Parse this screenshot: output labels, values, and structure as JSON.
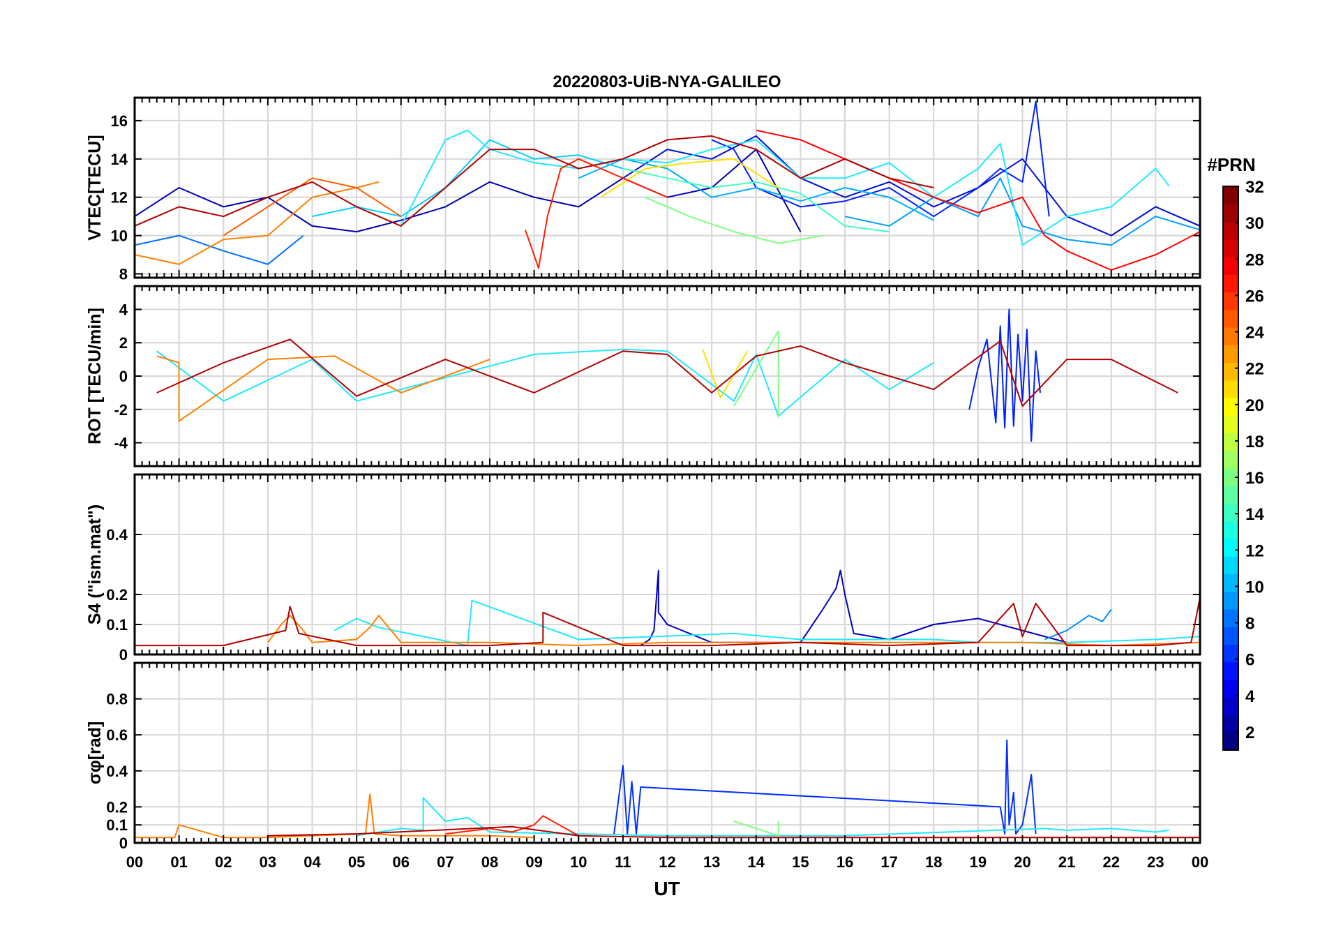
{
  "title": "20220803-UiB-NYA-GALILEO",
  "x_axis": {
    "label": "UT",
    "range": [
      0,
      24
    ],
    "tick_labels": [
      "00",
      "01",
      "02",
      "03",
      "04",
      "05",
      "06",
      "07",
      "08",
      "09",
      "10",
      "11",
      "12",
      "13",
      "14",
      "15",
      "16",
      "17",
      "18",
      "19",
      "20",
      "21",
      "22",
      "23",
      "00"
    ]
  },
  "colorbar": {
    "title": "#PRN",
    "range": [
      1,
      32
    ],
    "tick_labels": [
      "2",
      "4",
      "6",
      "8",
      "10",
      "12",
      "14",
      "16",
      "18",
      "20",
      "22",
      "24",
      "26",
      "28",
      "30",
      "32"
    ],
    "colormap": "jet"
  },
  "chart_data": [
    {
      "type": "line",
      "panel": "vtec",
      "ylabel": "VTEC[TECU]",
      "ylim": [
        7.8,
        17.2
      ],
      "yticks": [
        8,
        10,
        12,
        14,
        16
      ],
      "grid": true,
      "series": [
        {
          "prn": 2,
          "x": [
            0,
            1,
            2,
            3,
            4,
            5,
            6,
            7,
            8,
            9,
            10,
            11,
            12,
            13,
            14,
            15
          ],
          "y": [
            11,
            12.5,
            11.5,
            12,
            10.5,
            10.2,
            10.8,
            11.5,
            12.8,
            12,
            11.5,
            13,
            12,
            12.5,
            14.5,
            10.2
          ],
          "color": "#0000b0"
        },
        {
          "prn": 3,
          "x": [
            11,
            12,
            13,
            14,
            15,
            16,
            17,
            18,
            19,
            20,
            21,
            22,
            23,
            24
          ],
          "y": [
            13,
            14.5,
            14,
            15.2,
            13,
            12,
            12.8,
            11.5,
            12.5,
            14,
            11,
            10,
            11.5,
            10.5
          ],
          "color": "#0010d0"
        },
        {
          "prn": 4,
          "x": [
            13,
            13.5,
            14,
            15,
            16,
            17,
            18,
            19,
            19.5,
            20,
            20.3,
            20.6
          ],
          "y": [
            15,
            14.5,
            12.5,
            11.5,
            11.8,
            12.5,
            11,
            12.5,
            13.5,
            12.8,
            17,
            11
          ],
          "color": "#0020ff"
        },
        {
          "prn": 7,
          "x": [
            0,
            1,
            2,
            3,
            3.8
          ],
          "y": [
            9.5,
            10,
            9.2,
            8.5,
            10
          ],
          "color": "#0070ff"
        },
        {
          "prn": 9,
          "x": [
            16,
            17,
            18,
            19,
            19.5,
            20,
            21,
            22,
            23,
            24
          ],
          "y": [
            11,
            10.5,
            12,
            11,
            13,
            10.5,
            9.8,
            9.5,
            11,
            10.3
          ],
          "color": "#00a0ff"
        },
        {
          "prn": 10,
          "x": [
            10,
            11,
            12,
            13,
            14,
            15,
            16,
            17,
            18
          ],
          "y": [
            13,
            14,
            13.5,
            12,
            12.5,
            11.8,
            12.5,
            12,
            10.8
          ],
          "color": "#00b0ff"
        },
        {
          "prn": 12,
          "x": [
            4,
            5,
            6,
            7,
            8,
            9,
            10,
            11
          ],
          "y": [
            11,
            11.5,
            11,
            12.5,
            15,
            14,
            14.2,
            13.5
          ],
          "color": "#00d0ff"
        },
        {
          "prn": 13,
          "x": [
            6,
            7,
            7.5,
            8,
            9,
            10,
            11,
            12,
            13,
            14,
            15,
            16,
            17,
            18,
            19,
            19.5,
            20,
            21,
            22,
            23,
            23.3
          ],
          "y": [
            10.5,
            15,
            15.5,
            14.5,
            13.8,
            13.5,
            14,
            13.8,
            14.5,
            15,
            13,
            13,
            13.8,
            12,
            13.5,
            14.8,
            9.5,
            11,
            11.5,
            13.5,
            12.6
          ],
          "color": "#20e8ff"
        },
        {
          "prn": 15,
          "x": [
            11,
            12,
            13,
            14,
            15,
            16,
            17
          ],
          "y": [
            13.5,
            13,
            12.5,
            12.8,
            12.2,
            10.5,
            10.2
          ],
          "color": "#40ffc0"
        },
        {
          "prn": 17,
          "x": [
            11.5,
            12.5,
            13.5,
            14.5,
            15.5
          ],
          "y": [
            12,
            11,
            10.2,
            9.6,
            10
          ],
          "color": "#80ff80"
        },
        {
          "prn": 20,
          "x": [
            10.5,
            11.5,
            12.5,
            13.5,
            14.5
          ],
          "y": [
            12,
            13.5,
            13.8,
            14,
            12.5
          ],
          "color": "#ffe000"
        },
        {
          "prn": 23,
          "x": [
            0,
            1,
            2,
            3,
            4,
            5,
            5.5
          ],
          "y": [
            9,
            8.5,
            9.8,
            10,
            12,
            12.5,
            12.8
          ],
          "color": "#ff8000"
        },
        {
          "prn": 25,
          "x": [
            2,
            3,
            4,
            5,
            6
          ],
          "y": [
            10,
            11.5,
            13,
            12.5,
            11
          ],
          "color": "#ff6000"
        },
        {
          "prn": 27,
          "x": [
            8.8,
            9.1,
            9.3,
            9.6,
            10,
            11,
            12
          ],
          "y": [
            10.3,
            8.3,
            11,
            13.5,
            14,
            13,
            12
          ],
          "color": "#ff2000"
        },
        {
          "prn": 28,
          "x": [
            14,
            15,
            16,
            17,
            18,
            19,
            20,
            20.5,
            21,
            22,
            23,
            24
          ],
          "y": [
            15.5,
            15,
            14,
            13,
            12,
            11.2,
            12,
            10,
            9.2,
            8.2,
            9,
            10.2
          ],
          "color": "#ff0000"
        },
        {
          "prn": 31,
          "x": [
            0,
            1,
            2,
            3,
            4,
            5,
            6,
            7,
            8,
            9,
            10,
            11,
            12,
            13,
            14,
            15,
            16,
            17,
            18
          ],
          "y": [
            10.5,
            11.5,
            11,
            12,
            12.8,
            11.5,
            10.5,
            12.5,
            14.5,
            14.5,
            13.5,
            14,
            15,
            15.2,
            14.5,
            13,
            14,
            13,
            12.5
          ],
          "color": "#b00000"
        }
      ]
    },
    {
      "type": "line",
      "panel": "rot",
      "ylabel": "ROT [TECU/min]",
      "ylim": [
        -5.4,
        5.4
      ],
      "yticks": [
        -4,
        -2,
        0,
        2,
        4
      ],
      "grid": true,
      "series": [
        {
          "prn": 4,
          "x": [
            18.8,
            19,
            19.2,
            19.4,
            19.5,
            19.6,
            19.7,
            19.8,
            19.9,
            20,
            20.1,
            20.2,
            20.3,
            20.4
          ],
          "y": [
            -2,
            0.5,
            2.2,
            -2.8,
            3,
            -3.1,
            4,
            -3,
            2.5,
            -1.5,
            2.8,
            -3.9,
            1.5,
            -1
          ],
          "color": "#0020ff"
        },
        {
          "prn": 13,
          "x": [
            0.5,
            2,
            4,
            5,
            9,
            11,
            12,
            13.5,
            14,
            14.5,
            16,
            17,
            18
          ],
          "y": [
            1.5,
            -1.5,
            1,
            -1.5,
            1.3,
            1.6,
            1.5,
            -1.5,
            1.3,
            -2.4,
            1,
            -0.8,
            0.8
          ],
          "color": "#20e8ff"
        },
        {
          "prn": 17,
          "x": [
            13.5,
            14.5,
            14.5
          ],
          "y": [
            -1.8,
            2.7,
            -2.5
          ],
          "color": "#80ff80"
        },
        {
          "prn": 20,
          "x": [
            12.8,
            13.2,
            13.8
          ],
          "y": [
            1.6,
            -1.3,
            1.5
          ],
          "color": "#ffe000"
        },
        {
          "prn": 23,
          "x": [
            0.5,
            1,
            1,
            3,
            4.5,
            6,
            8
          ],
          "y": [
            1.2,
            0.8,
            -2.7,
            1,
            1.2,
            -1,
            1
          ],
          "color": "#ff8000"
        },
        {
          "prn": 31,
          "x": [
            0.5,
            2,
            3.5,
            5,
            7,
            9,
            11,
            12,
            13,
            14,
            15,
            16,
            18,
            19.5,
            20,
            21,
            22,
            23.5
          ],
          "y": [
            -1,
            0.8,
            2.2,
            -1.2,
            1,
            -1,
            1.5,
            1.3,
            -1,
            1.2,
            1.8,
            0.8,
            -0.8,
            2.1,
            -1.8,
            1,
            1,
            -1
          ],
          "color": "#b00000"
        }
      ]
    },
    {
      "type": "line",
      "panel": "s4",
      "ylabel": "S4 (\"ism.mat\")",
      "ylim": [
        0,
        0.6
      ],
      "yticks": [
        0,
        0.1,
        0.2,
        0.4
      ],
      "grid": true,
      "series": [
        {
          "prn": 2,
          "x": [
            11.4,
            11.6,
            11.7,
            11.8,
            11.8,
            12,
            12.5,
            13,
            14,
            15,
            15.5,
            15.8,
            15.9,
            16,
            16.2,
            17,
            18,
            19,
            20,
            21
          ],
          "y": [
            0.03,
            0.05,
            0.08,
            0.28,
            0.14,
            0.1,
            0.07,
            0.04,
            0.04,
            0.04,
            0.15,
            0.22,
            0.28,
            0.2,
            0.07,
            0.05,
            0.1,
            0.12,
            0.08,
            0.04
          ],
          "color": "#0000c0"
        },
        {
          "prn": 9,
          "x": [
            20.5,
            21,
            21.5,
            21.8,
            22
          ],
          "y": [
            0.05,
            0.08,
            0.13,
            0.11,
            0.15
          ],
          "color": "#0090ff"
        },
        {
          "prn": 13,
          "x": [
            4.5,
            5,
            5.5,
            7.5,
            7.6,
            10,
            13.5,
            15,
            18,
            19,
            21,
            23,
            24
          ],
          "y": [
            0.08,
            0.12,
            0.09,
            0.03,
            0.18,
            0.05,
            0.07,
            0.05,
            0.05,
            0.04,
            0.04,
            0.05,
            0.06
          ],
          "color": "#20e8ff"
        },
        {
          "prn": 23,
          "x": [
            3,
            3.3,
            3.5,
            3.8,
            4,
            5,
            5.3,
            5.5,
            6,
            8,
            10,
            12,
            14,
            16,
            18,
            20,
            22,
            24
          ],
          "y": [
            0.04,
            0.1,
            0.13,
            0.08,
            0.04,
            0.05,
            0.09,
            0.13,
            0.04,
            0.04,
            0.03,
            0.04,
            0.04,
            0.04,
            0.04,
            0.04,
            0.03,
            0.04
          ],
          "color": "#ff8000"
        },
        {
          "prn": 31,
          "x": [
            0,
            2,
            3.4,
            3.5,
            3.7,
            5,
            8,
            9.2,
            9.2,
            11,
            13,
            15,
            17,
            19,
            19.8,
            20,
            20.3,
            21,
            23,
            23.8,
            24
          ],
          "y": [
            0.03,
            0.03,
            0.08,
            0.16,
            0.07,
            0.03,
            0.03,
            0.04,
            0.14,
            0.03,
            0.03,
            0.04,
            0.03,
            0.04,
            0.17,
            0.06,
            0.17,
            0.03,
            0.03,
            0.04,
            0.19
          ],
          "color": "#b00000"
        }
      ]
    },
    {
      "type": "line",
      "panel": "sigma_phi",
      "ylabel": "σφ[rad]",
      "ylim": [
        0,
        1
      ],
      "yticks": [
        0,
        0.1,
        0.2,
        0.4,
        0.6,
        0.8
      ],
      "grid": true,
      "series": [
        {
          "prn": 4,
          "x": [
            10.8,
            11,
            11.1,
            11.2,
            11.3,
            11.4,
            19.5,
            19.6,
            19.65,
            19.7,
            19.8,
            19.85,
            20,
            20.2,
            20.3
          ],
          "y": [
            0.05,
            0.43,
            0.05,
            0.34,
            0.05,
            0.31,
            0.2,
            0.05,
            0.57,
            0.1,
            0.28,
            0.05,
            0.1,
            0.38,
            0.05
          ],
          "color": "#0030ff"
        },
        {
          "prn": 13,
          "x": [
            5,
            6,
            6.5,
            6.5,
            7,
            7.5,
            8,
            12,
            16,
            20.5,
            21,
            22,
            23,
            23.3
          ],
          "y": [
            0.04,
            0.08,
            0.07,
            0.25,
            0.12,
            0.14,
            0.06,
            0.04,
            0.04,
            0.08,
            0.07,
            0.08,
            0.06,
            0.07
          ],
          "color": "#20e8ff"
        },
        {
          "prn": 17,
          "x": [
            13.5,
            14.5,
            14.5
          ],
          "y": [
            0.12,
            0.04,
            0.12
          ],
          "color": "#80ff80"
        },
        {
          "prn": 23,
          "x": [
            0,
            0.9,
            1,
            2,
            3,
            4,
            5.2,
            5.3,
            5.4,
            6,
            8,
            9
          ],
          "y": [
            0.03,
            0.03,
            0.1,
            0.03,
            0.03,
            0.04,
            0.05,
            0.27,
            0.05,
            0.04,
            0.04,
            0.03
          ],
          "color": "#ff8000"
        },
        {
          "prn": 27,
          "x": [
            7,
            8,
            8.5,
            9,
            9.2,
            10
          ],
          "y": [
            0.05,
            0.08,
            0.06,
            0.1,
            0.15,
            0.04
          ],
          "color": "#ff2000"
        },
        {
          "prn": 31,
          "x": [
            3,
            5,
            8.5,
            10,
            12,
            14,
            16,
            18,
            20,
            22,
            24
          ],
          "y": [
            0.04,
            0.05,
            0.09,
            0.04,
            0.03,
            0.03,
            0.03,
            0.03,
            0.03,
            0.03,
            0.03
          ],
          "color": "#b00000"
        }
      ]
    }
  ]
}
